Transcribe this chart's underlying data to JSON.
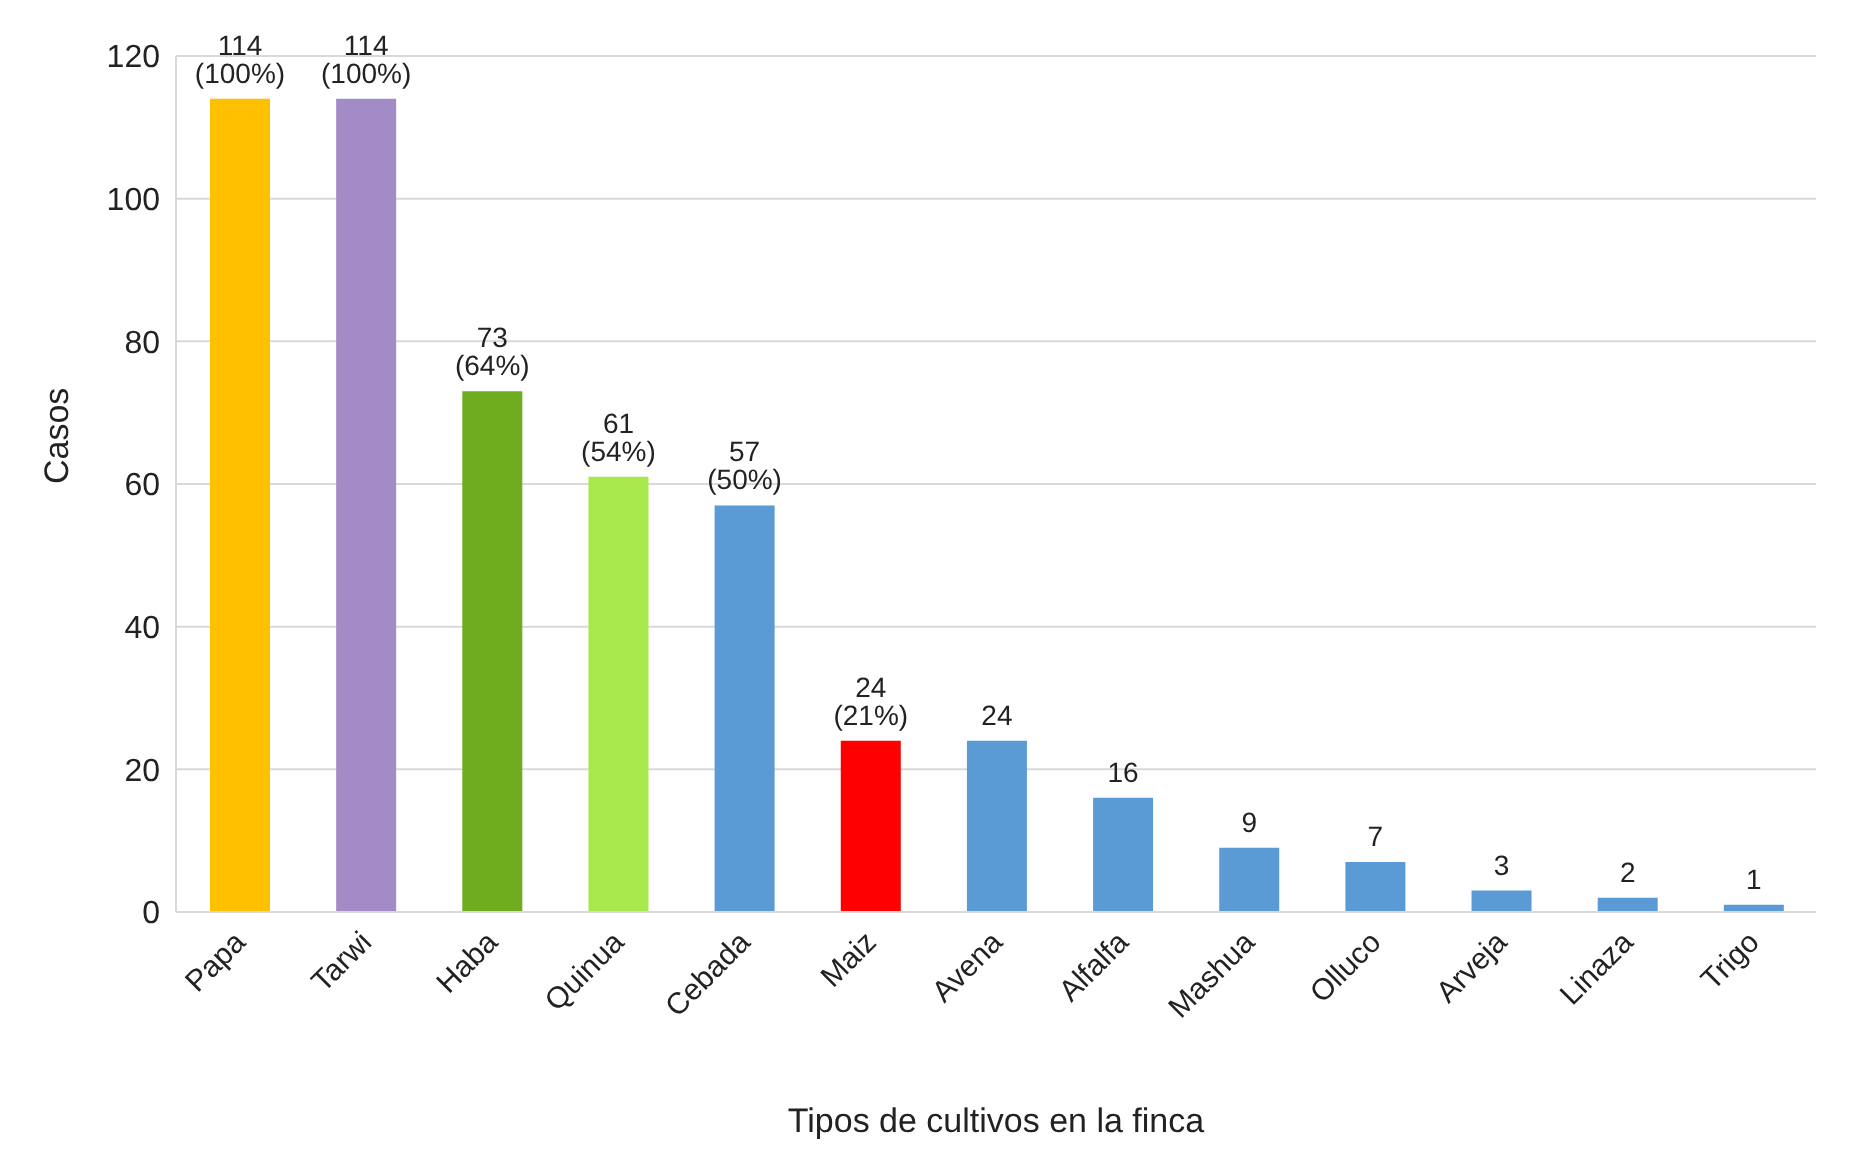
{
  "chart_data": {
    "type": "bar",
    "xlabel": "Tipos de cultivos en la finca",
    "ylabel": "Casos",
    "categories": [
      "Papa",
      "Tarwi",
      "Haba",
      "Quinua",
      "Cebada",
      "Maiz",
      "Avena",
      "Alfalfa",
      "Mashua",
      "Olluco",
      "Arveja",
      "Linaza",
      "Trigo"
    ],
    "values": [
      114,
      114,
      73,
      61,
      57,
      24,
      24,
      16,
      9,
      7,
      3,
      2,
      1
    ],
    "colors": [
      "#ffc000",
      "#a28bc6",
      "#6fac1e",
      "#a9e84a",
      "#5b9bd5",
      "#ff0000",
      "#5b9bd5",
      "#5b9bd5",
      "#5b9bd5",
      "#5b9bd5",
      "#5b9bd5",
      "#5b9bd5",
      "#5b9bd5"
    ],
    "value_labels": [
      "114 (100%)",
      "114 (100%)",
      "73 (64%)",
      "61 (54%)",
      "57 (50%)",
      "24 (21%)",
      "24",
      "16",
      "9",
      "7",
      "3",
      "2",
      "1"
    ],
    "ylim": [
      0,
      120
    ],
    "yticks": [
      0,
      20,
      40,
      60,
      80,
      100,
      120
    ],
    "grid": "y"
  }
}
